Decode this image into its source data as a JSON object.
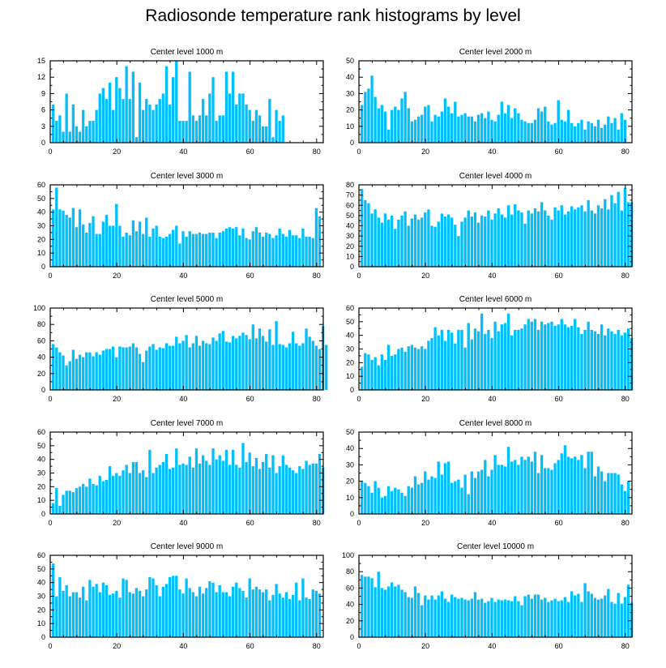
{
  "figure_title": "Radiosonde temperature rank histograms by level",
  "bar_color": "#00BFFF",
  "axis_color": "#000000",
  "chart_data": [
    {
      "type": "bar",
      "title": "Center level 1000 m",
      "xlim": [
        0,
        82
      ],
      "ylim": [
        0,
        15
      ],
      "xticks": [
        0,
        20,
        40,
        60,
        80
      ],
      "yticks": [
        0,
        3,
        6,
        9,
        12,
        15
      ],
      "values": [
        7,
        4,
        5,
        2,
        9,
        2,
        7,
        3,
        2,
        6,
        3,
        4,
        4,
        6,
        9,
        10,
        8,
        11,
        6,
        12,
        10,
        8,
        14,
        8,
        13,
        1,
        11,
        6,
        8,
        7,
        6,
        7,
        8,
        9,
        14,
        7,
        12,
        15,
        4,
        4,
        4,
        13,
        5,
        4,
        5,
        8,
        5,
        9,
        12,
        4,
        5,
        5,
        13,
        9,
        13,
        7,
        9,
        9,
        7,
        6,
        4,
        6,
        5,
        3,
        3,
        8,
        1,
        6,
        4,
        5
      ]
    },
    {
      "type": "bar",
      "title": "Center level 2000 m",
      "xlim": [
        0,
        82
      ],
      "ylim": [
        0,
        50
      ],
      "xticks": [
        0,
        20,
        40,
        60,
        80
      ],
      "yticks": [
        0,
        10,
        20,
        30,
        40,
        50
      ],
      "values": [
        23,
        31,
        33,
        41,
        28,
        21,
        23,
        19,
        8,
        20,
        22,
        20,
        27,
        31,
        21,
        13,
        14,
        16,
        17,
        22,
        23,
        13,
        17,
        16,
        19,
        27,
        22,
        18,
        25,
        16,
        17,
        18,
        16,
        16,
        13,
        17,
        18,
        15,
        19,
        14,
        13,
        17,
        25,
        18,
        23,
        15,
        21,
        18,
        14,
        13,
        12,
        12,
        14,
        21,
        19,
        22,
        13,
        11,
        12,
        26,
        14,
        13,
        20,
        12,
        10,
        12,
        14,
        8,
        13,
        12,
        10,
        14,
        9,
        11,
        16,
        12,
        15,
        8,
        18,
        14
      ]
    },
    {
      "type": "bar",
      "title": "Center level 3000 m",
      "xlim": [
        0,
        82
      ],
      "ylim": [
        0,
        60
      ],
      "xticks": [
        0,
        20,
        40,
        60,
        80
      ],
      "yticks": [
        0,
        10,
        20,
        30,
        40,
        50,
        60
      ],
      "values": [
        42,
        58,
        42,
        41,
        38,
        36,
        43,
        29,
        42,
        31,
        25,
        32,
        37,
        24,
        24,
        33,
        38,
        30,
        30,
        46,
        30,
        22,
        25,
        23,
        34,
        26,
        33,
        24,
        36,
        22,
        28,
        30,
        22,
        21,
        22,
        24,
        27,
        30,
        17,
        26,
        22,
        26,
        24,
        24,
        25,
        24,
        24,
        25,
        25,
        21,
        25,
        26,
        28,
        29,
        28,
        29,
        23,
        28,
        21,
        20,
        26,
        29,
        25,
        22,
        25,
        24,
        21,
        23,
        28,
        24,
        22,
        27,
        23,
        23,
        21,
        28,
        22,
        22,
        21,
        43,
        37
      ]
    },
    {
      "type": "bar",
      "title": "Center level 4000 m",
      "xlim": [
        0,
        82
      ],
      "ylim": [
        0,
        80
      ],
      "xticks": [
        0,
        20,
        40,
        60,
        80
      ],
      "yticks": [
        0,
        10,
        20,
        30,
        40,
        50,
        60,
        70,
        80
      ],
      "values": [
        76,
        65,
        62,
        52,
        56,
        48,
        43,
        52,
        46,
        50,
        37,
        46,
        50,
        54,
        40,
        47,
        51,
        46,
        48,
        53,
        56,
        40,
        39,
        44,
        52,
        49,
        51,
        48,
        41,
        30,
        44,
        48,
        55,
        49,
        53,
        43,
        50,
        49,
        55,
        46,
        52,
        57,
        51,
        48,
        60,
        51,
        61,
        55,
        53,
        42,
        55,
        52,
        57,
        54,
        63,
        55,
        50,
        46,
        58,
        55,
        60,
        51,
        54,
        59,
        56,
        58,
        60,
        54,
        65,
        55,
        52,
        60,
        57,
        66,
        56,
        70,
        62,
        73,
        55,
        77,
        63,
        63
      ]
    },
    {
      "type": "bar",
      "title": "Center level 5000 m",
      "xlim": [
        0,
        82
      ],
      "ylim": [
        0,
        100
      ],
      "xticks": [
        0,
        20,
        40,
        60,
        80
      ],
      "yticks": [
        0,
        20,
        40,
        60,
        80,
        100
      ],
      "values": [
        56,
        52,
        46,
        42,
        30,
        35,
        49,
        38,
        43,
        40,
        46,
        46,
        41,
        46,
        43,
        48,
        50,
        50,
        53,
        40,
        53,
        52,
        52,
        53,
        57,
        52,
        44,
        34,
        48,
        53,
        56,
        49,
        52,
        51,
        57,
        54,
        54,
        65,
        57,
        60,
        67,
        52,
        57,
        66,
        54,
        60,
        57,
        56,
        64,
        60,
        69,
        72,
        59,
        58,
        66,
        63,
        66,
        70,
        67,
        62,
        80,
        63,
        75,
        66,
        59,
        74,
        55,
        84,
        56,
        55,
        52,
        57,
        71,
        57,
        54,
        57,
        75,
        65,
        60,
        54,
        50,
        78,
        55
      ]
    },
    {
      "type": "bar",
      "title": "Center level 6000 m",
      "xlim": [
        0,
        82
      ],
      "ylim": [
        0,
        60
      ],
      "xticks": [
        0,
        20,
        40,
        60,
        80
      ],
      "yticks": [
        0,
        10,
        20,
        30,
        40,
        50,
        60
      ],
      "values": [
        17,
        27,
        26,
        22,
        24,
        18,
        26,
        22,
        33,
        25,
        26,
        30,
        31,
        28,
        32,
        33,
        31,
        30,
        32,
        30,
        36,
        38,
        46,
        40,
        44,
        36,
        44,
        42,
        34,
        44,
        44,
        31,
        49,
        37,
        45,
        43,
        56,
        41,
        44,
        38,
        50,
        43,
        48,
        49,
        56,
        40,
        44,
        44,
        45,
        48,
        52,
        50,
        52,
        44,
        50,
        48,
        49,
        50,
        47,
        48,
        52,
        48,
        46,
        47,
        52,
        46,
        41,
        44,
        50,
        44,
        43,
        41,
        48,
        40,
        45,
        43,
        41,
        44,
        40,
        42,
        45,
        38
      ]
    },
    {
      "type": "bar",
      "title": "Center level 7000 m",
      "xlim": [
        0,
        82
      ],
      "ylim": [
        0,
        60
      ],
      "xticks": [
        0,
        20,
        40,
        60,
        80
      ],
      "yticks": [
        0,
        10,
        20,
        30,
        40,
        50,
        60
      ],
      "values": [
        8,
        19,
        6,
        14,
        17,
        17,
        16,
        19,
        20,
        22,
        20,
        26,
        22,
        21,
        28,
        24,
        25,
        35,
        28,
        30,
        28,
        32,
        36,
        30,
        38,
        38,
        30,
        32,
        27,
        47,
        30,
        34,
        36,
        38,
        44,
        33,
        34,
        48,
        36,
        37,
        36,
        42,
        34,
        48,
        37,
        43,
        39,
        36,
        48,
        40,
        43,
        39,
        47,
        36,
        47,
        36,
        34,
        52,
        38,
        45,
        35,
        41,
        33,
        38,
        44,
        34,
        43,
        30,
        35,
        43,
        36,
        34,
        32,
        30,
        35,
        33,
        39,
        36,
        37,
        37,
        44,
        34
      ]
    },
    {
      "type": "bar",
      "title": "Center level 8000 m",
      "xlim": [
        0,
        82
      ],
      "ylim": [
        0,
        50
      ],
      "xticks": [
        0,
        20,
        40,
        60,
        80
      ],
      "yticks": [
        0,
        10,
        20,
        30,
        40,
        50
      ],
      "values": [
        20,
        19,
        17,
        13,
        20,
        16,
        10,
        11,
        17,
        14,
        16,
        15,
        13,
        11,
        17,
        16,
        23,
        18,
        19,
        26,
        21,
        23,
        22,
        32,
        24,
        31,
        32,
        19,
        20,
        21,
        16,
        24,
        12,
        26,
        22,
        26,
        27,
        33,
        23,
        27,
        36,
        30,
        30,
        29,
        41,
        32,
        33,
        30,
        35,
        33,
        35,
        32,
        38,
        25,
        36,
        28,
        28,
        27,
        31,
        33,
        37,
        42,
        35,
        34,
        35,
        33,
        36,
        28,
        38,
        38,
        23,
        29,
        26,
        20,
        25,
        25,
        25,
        24,
        18,
        14,
        20
      ]
    },
    {
      "type": "bar",
      "title": "Center level 9000 m",
      "xlim": [
        0,
        82
      ],
      "ylim": [
        0,
        60
      ],
      "xticks": [
        0,
        20,
        40,
        60,
        80
      ],
      "yticks": [
        0,
        10,
        20,
        30,
        40,
        50,
        60
      ],
      "values": [
        54,
        30,
        44,
        34,
        38,
        30,
        33,
        33,
        29,
        37,
        27,
        42,
        37,
        39,
        33,
        40,
        38,
        31,
        32,
        34,
        29,
        43,
        42,
        33,
        32,
        36,
        34,
        30,
        35,
        44,
        43,
        38,
        30,
        37,
        39,
        44,
        45,
        45,
        35,
        32,
        43,
        36,
        33,
        30,
        37,
        32,
        36,
        41,
        40,
        33,
        38,
        33,
        33,
        30,
        37,
        40,
        36,
        34,
        29,
        43,
        35,
        37,
        35,
        33,
        35,
        27,
        31,
        39,
        32,
        29,
        33,
        28,
        31,
        40,
        27,
        43,
        29,
        28,
        35,
        34,
        32
      ]
    },
    {
      "type": "bar",
      "title": "Center level 10000 m",
      "xlim": [
        0,
        82
      ],
      "ylim": [
        0,
        100
      ],
      "xticks": [
        0,
        20,
        40,
        60,
        80
      ],
      "yticks": [
        0,
        20,
        40,
        60,
        80,
        100
      ],
      "values": [
        76,
        74,
        74,
        72,
        61,
        80,
        60,
        58,
        62,
        67,
        62,
        64,
        58,
        55,
        49,
        48,
        62,
        54,
        39,
        51,
        46,
        51,
        46,
        51,
        56,
        47,
        43,
        52,
        49,
        47,
        48,
        46,
        45,
        47,
        55,
        46,
        47,
        42,
        44,
        48,
        43,
        46,
        45,
        46,
        45,
        44,
        50,
        44,
        39,
        50,
        52,
        47,
        52,
        52,
        46,
        48,
        43,
        45,
        47,
        44,
        45,
        49,
        43,
        56,
        51,
        53,
        43,
        66,
        56,
        53,
        48,
        46,
        47,
        51,
        59,
        43,
        41,
        54,
        41,
        49,
        64,
        42
      ]
    }
  ]
}
